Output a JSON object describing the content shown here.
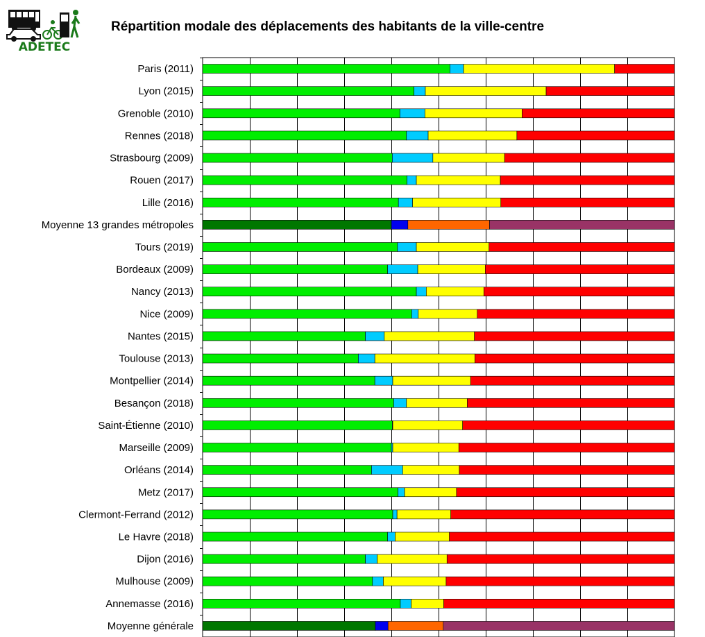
{
  "header": {
    "logo_text": "ADETEC",
    "logo_icon": "bus-car-bike-pedestrian-icon"
  },
  "chart_data": {
    "type": "bar",
    "orientation": "horizontal",
    "stacked": true,
    "normalized": true,
    "title": "Répartition modale des déplacements des habitants de la ville-centre",
    "xlabel": "",
    "ylabel": "",
    "xlim": [
      0,
      100
    ],
    "grid": true,
    "legend": "none",
    "categories": [
      "Paris (2011)",
      "Lyon (2015)",
      "Grenoble (2010)",
      "Rennes (2018)",
      "Strasbourg (2009)",
      "Rouen (2017)",
      "Lille (2016)",
      "Moyenne 13 grandes métropoles",
      "Tours (2019)",
      "Bordeaux (2009)",
      "Nancy (2013)",
      "Nice (2009)",
      "Nantes (2015)",
      "Toulouse (2013)",
      "Montpellier (2014)",
      "Besançon (2018)",
      "Saint-Étienne (2010)",
      "Marseille (2009)",
      "Orléans (2014)",
      "Metz (2017)",
      "Clermont-Ferrand (2012)",
      "Le Havre (2018)",
      "Dijon (2016)",
      "Mulhouse (2009)",
      "Annemasse (2016)",
      "Moyenne générale"
    ],
    "highlight_categories": [
      "Moyenne 13 grandes métropoles",
      "Moyenne générale"
    ],
    "series": [
      {
        "color": "#00ee00",
        "highlight_color": "#007700",
        "values": [
          52.4,
          44.8,
          41.8,
          43.2,
          40.2,
          43.3,
          41.5,
          40.0,
          41.3,
          39.2,
          45.3,
          44.3,
          34.5,
          33.0,
          36.5,
          40.5,
          40.2,
          40.0,
          35.8,
          41.4,
          40.3,
          39.2,
          34.5,
          36.0,
          41.9,
          36.6
        ]
      },
      {
        "color": "#00ccff",
        "highlight_color": "#0000ee",
        "values": [
          2.9,
          2.4,
          5.3,
          4.6,
          8.6,
          2.0,
          3.0,
          3.5,
          4.0,
          6.4,
          2.1,
          1.4,
          4.0,
          3.5,
          3.8,
          2.7,
          0.1,
          0.3,
          6.6,
          1.4,
          0.9,
          1.6,
          2.5,
          2.3,
          2.3,
          2.7
        ]
      },
      {
        "color": "#ffff00",
        "highlight_color": "#ff6600",
        "values": [
          32.0,
          25.6,
          20.6,
          18.8,
          15.2,
          17.8,
          18.7,
          17.3,
          15.4,
          14.3,
          12.2,
          12.5,
          19.1,
          21.2,
          16.5,
          12.9,
          14.8,
          14.0,
          12.0,
          11.0,
          11.4,
          11.5,
          14.8,
          13.3,
          6.9,
          11.7
        ]
      },
      {
        "color": "#ff0000",
        "highlight_color": "#993366",
        "values": [
          12.7,
          27.2,
          32.3,
          33.4,
          36.0,
          36.9,
          36.8,
          39.2,
          39.3,
          40.1,
          40.4,
          41.8,
          42.4,
          42.3,
          43.2,
          43.9,
          44.9,
          45.7,
          45.6,
          46.2,
          47.4,
          47.7,
          48.2,
          48.4,
          48.9,
          49.0
        ]
      }
    ]
  }
}
